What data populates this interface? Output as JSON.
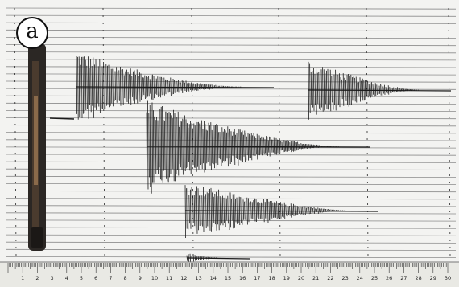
{
  "panel": {
    "label": "a"
  },
  "ruler": {
    "numbers": [
      "1",
      "2",
      "3",
      "4",
      "5",
      "6",
      "7",
      "8",
      "9",
      "10",
      "11",
      "12",
      "13",
      "14",
      "15",
      "16",
      "17",
      "18",
      "19",
      "20",
      "21",
      "22",
      "23",
      "24",
      "25",
      "26",
      "27",
      "28",
      "29",
      "30"
    ]
  },
  "colors": {
    "paper": "#f3f3f1",
    "ink": "#1a1a1a",
    "trace_line": "#8c8c8c",
    "pen_body": "#2b2724",
    "pen_band": "#8a6a4a"
  }
}
